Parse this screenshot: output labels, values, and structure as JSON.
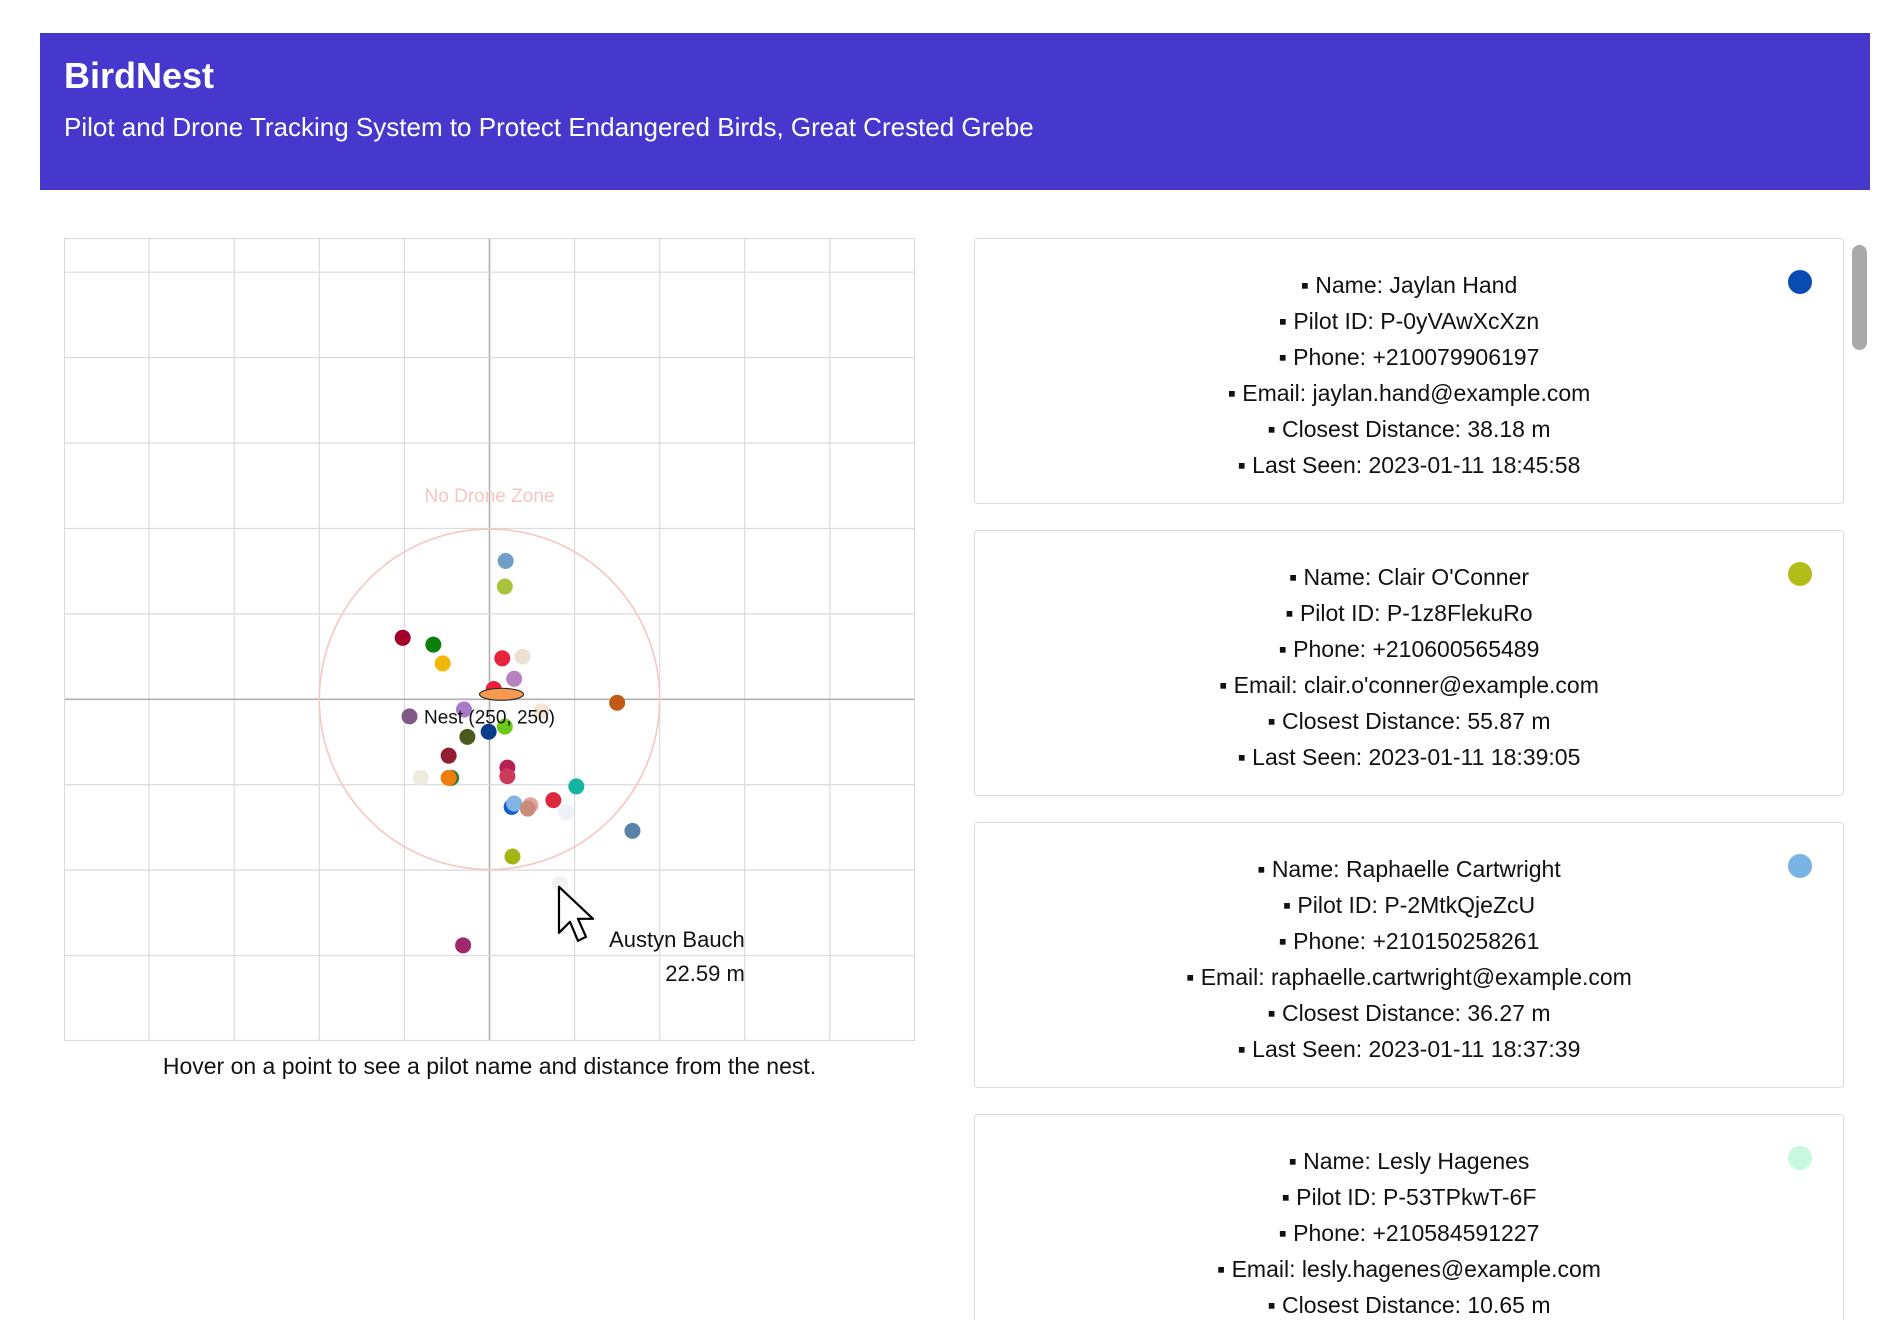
{
  "app": {
    "title": "BirdNest",
    "subtitle": "Pilot and Drone Tracking System to Protect Endangered Birds, Great Crested Grebe",
    "header_color": "#4638cd"
  },
  "map": {
    "zone_label": "No Drone Zone",
    "nest_label": "Nest (250, 250)",
    "help_text": "Hover on a point to see a pilot name and distance from the nest.",
    "tooltip": {
      "name": "Austyn Bauch",
      "distance": "22.59 m"
    },
    "points": [
      {
        "x": 259.5,
        "y": 169,
        "color": "#6f9ec8"
      },
      {
        "x": 259,
        "y": 184,
        "color": "#a8c43c"
      },
      {
        "x": 199,
        "y": 214,
        "color": "#a3002b"
      },
      {
        "x": 217,
        "y": 218,
        "color": "#0a7f0a"
      },
      {
        "x": 257.5,
        "y": 226,
        "color": "#e8243c"
      },
      {
        "x": 269.5,
        "y": 225,
        "color": "#ece0d4"
      },
      {
        "x": 222.5,
        "y": 229,
        "color": "#f3b708"
      },
      {
        "x": 264.5,
        "y": 238,
        "color": "#b682c0"
      },
      {
        "x": 252.5,
        "y": 244,
        "color": "#ee1e3c"
      },
      {
        "x": 235,
        "y": 256,
        "color": "#a978c8"
      },
      {
        "x": 280.5,
        "y": 257,
        "color": "#f6e4d2"
      },
      {
        "x": 325,
        "y": 252,
        "color": "#c05a14"
      },
      {
        "x": 203,
        "y": 260,
        "color": "#7f5a85"
      },
      {
        "x": 259,
        "y": 266,
        "color": "#6ec818"
      },
      {
        "x": 237,
        "y": 272,
        "color": "#4a5a1e"
      },
      {
        "x": 249.5,
        "y": 269,
        "color": "#0a3c8c"
      },
      {
        "x": 226,
        "y": 283,
        "color": "#921e32"
      },
      {
        "x": 260.5,
        "y": 290,
        "color": "#b41e50"
      },
      {
        "x": 260.5,
        "y": 295,
        "color": "#cc3a5c"
      },
      {
        "x": 209.5,
        "y": 296,
        "color": "#eeeae0"
      },
      {
        "x": 227.5,
        "y": 296,
        "color": "#2f7d32"
      },
      {
        "x": 226,
        "y": 296,
        "color": "#f07c0a"
      },
      {
        "x": 301,
        "y": 301,
        "color": "#14b4a0"
      },
      {
        "x": 287.5,
        "y": 309,
        "color": "#dc283c"
      },
      {
        "x": 274,
        "y": 312,
        "color": "#e8a0a0"
      },
      {
        "x": 263,
        "y": 313,
        "color": "#1460c8"
      },
      {
        "x": 264.5,
        "y": 311,
        "color": "#82b4e6"
      },
      {
        "x": 272.5,
        "y": 314,
        "color": "#c88c78"
      },
      {
        "x": 295,
        "y": 316,
        "color": "#eef2f8"
      },
      {
        "x": 334,
        "y": 327,
        "color": "#5a82a8"
      },
      {
        "x": 263.5,
        "y": 342,
        "color": "#a4b414"
      },
      {
        "x": 291.5,
        "y": 358,
        "color": "#f2f2f2"
      },
      {
        "x": 234.5,
        "y": 394,
        "color": "#a0286e"
      }
    ],
    "ticks": [
      0,
      50,
      100,
      150,
      200,
      250,
      300,
      350,
      400,
      450,
      500
    ]
  },
  "pilots": [
    {
      "name": "Name: Jaylan Hand",
      "pilot_id": "Pilot ID: P-0yVAwXcXzn",
      "phone": "Phone: +210079906197",
      "email": "Email: jaylan.hand@example.com",
      "distance": "Closest Distance: 38.18 m",
      "last_seen": "Last Seen: 2023-01-11 18:45:58",
      "color": "#0a4cb4"
    },
    {
      "name": "Name: Clair O'Conner",
      "pilot_id": "Pilot ID: P-1z8FlekuRo",
      "phone": "Phone: +210600565489",
      "email": "Email: clair.o'conner@example.com",
      "distance": "Closest Distance: 55.87 m",
      "last_seen": "Last Seen: 2023-01-11 18:39:05",
      "color": "#b4bc18"
    },
    {
      "name": "Name: Raphaelle Cartwright",
      "pilot_id": "Pilot ID: P-2MtkQjeZcU",
      "phone": "Phone: +210150258261",
      "email": "Email: raphaelle.cartwright@example.com",
      "distance": "Closest Distance: 36.27 m",
      "last_seen": "Last Seen: 2023-01-11 18:37:39",
      "color": "#7ab4e6"
    },
    {
      "name": "Name: Lesly Hagenes",
      "pilot_id": "Pilot ID: P-53TPkwT-6F",
      "phone": "Phone: +210584591227",
      "email": "Email: lesly.hagenes@example.com",
      "distance": "Closest Distance: 10.65 m",
      "last_seen": "",
      "color": "#c8f8e0"
    }
  ]
}
